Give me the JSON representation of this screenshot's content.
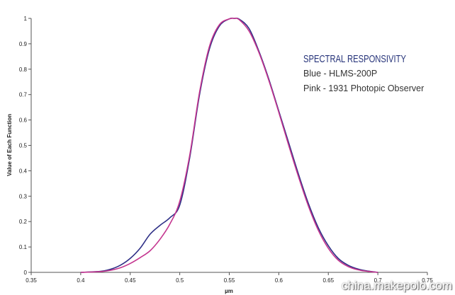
{
  "chart_data": {
    "type": "line",
    "title": "SPECTRAL RESPONSIVITY",
    "legend_lines": [
      "Blue - HLMS-200P",
      "Pink - 1931 Photopic Observer"
    ],
    "xlabel": "µm",
    "ylabel": "Value of Each Function",
    "xlim": [
      0.35,
      0.75
    ],
    "ylim": [
      0,
      1
    ],
    "x_ticks": [
      "0.35",
      "0.4",
      "0.45",
      "0.5",
      "0.55",
      "0.6",
      "0.65",
      "0.7",
      "0.75"
    ],
    "y_ticks": [
      "0",
      "0.1",
      "0.2",
      "0.3",
      "0.4",
      "0.5",
      "0.6",
      "0.7",
      "0.8",
      "0.9",
      "1"
    ],
    "grid": false,
    "legend_position": "top-right",
    "series": [
      {
        "color": "#2e2f86",
        "x": [
          0.4,
          0.42,
          0.43,
          0.44,
          0.45,
          0.46,
          0.47,
          0.48,
          0.49,
          0.5,
          0.51,
          0.52,
          0.53,
          0.54,
          0.55,
          0.555,
          0.56,
          0.57,
          0.58,
          0.59,
          0.6,
          0.61,
          0.62,
          0.63,
          0.64,
          0.65,
          0.66,
          0.67,
          0.68,
          0.69,
          0.7
        ],
        "y": [
          0.0,
          0.004,
          0.012,
          0.028,
          0.055,
          0.095,
          0.15,
          0.185,
          0.215,
          0.265,
          0.45,
          0.7,
          0.88,
          0.97,
          0.998,
          1.0,
          0.997,
          0.96,
          0.87,
          0.76,
          0.635,
          0.51,
          0.385,
          0.27,
          0.175,
          0.105,
          0.055,
          0.028,
          0.013,
          0.005,
          0.0
        ]
      },
      {
        "color": "#c4358f",
        "x": [
          0.4,
          0.42,
          0.43,
          0.44,
          0.45,
          0.46,
          0.47,
          0.48,
          0.49,
          0.5,
          0.51,
          0.52,
          0.53,
          0.54,
          0.55,
          0.555,
          0.56,
          0.57,
          0.58,
          0.59,
          0.6,
          0.61,
          0.62,
          0.63,
          0.64,
          0.65,
          0.66,
          0.67,
          0.68,
          0.69,
          0.7
        ],
        "y": [
          0.0,
          0.003,
          0.008,
          0.018,
          0.035,
          0.058,
          0.085,
          0.13,
          0.19,
          0.28,
          0.46,
          0.71,
          0.89,
          0.975,
          0.998,
          1.0,
          0.995,
          0.95,
          0.865,
          0.755,
          0.63,
          0.5,
          0.375,
          0.26,
          0.165,
          0.095,
          0.048,
          0.023,
          0.01,
          0.004,
          0.0
        ]
      }
    ]
  },
  "watermark": "china.makepolo.com"
}
